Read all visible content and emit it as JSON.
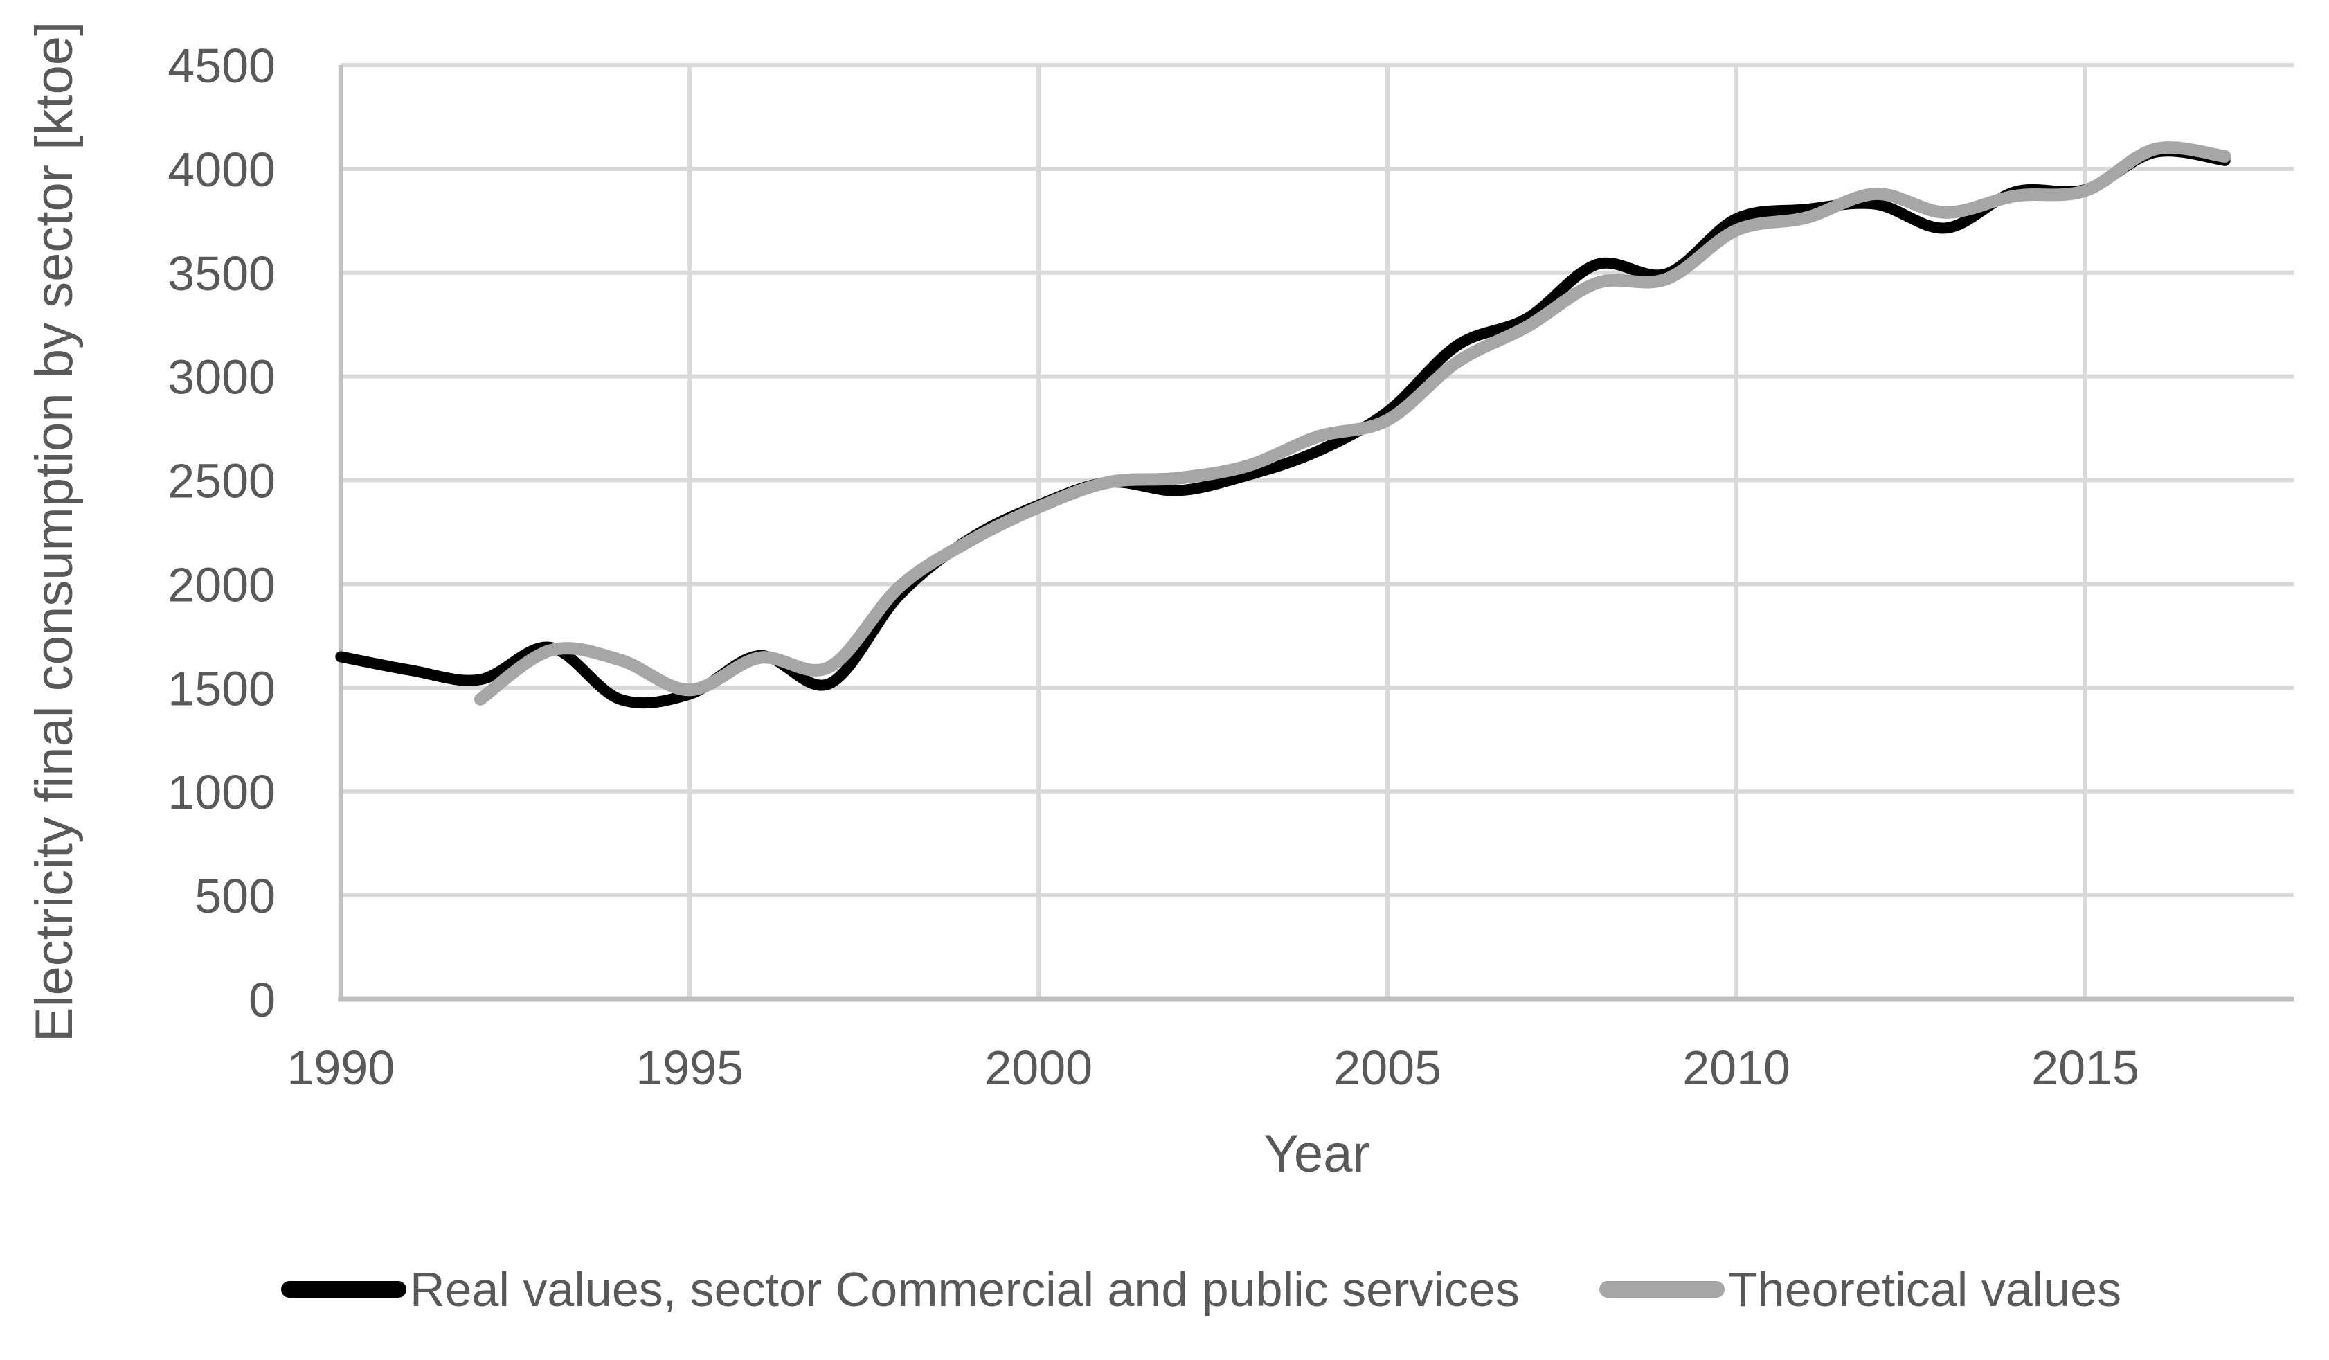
{
  "chart_data": {
    "type": "line",
    "title": "",
    "xlabel": "Year",
    "ylabel": "Electricity final consumption by sector [ktoe]",
    "grid": true,
    "legend_position": "bottom",
    "xlim": [
      1990,
      2017.9
    ],
    "ylim": [
      0,
      4500
    ],
    "x_tick_labels": [
      "1990",
      "1995",
      "2000",
      "2005",
      "2010",
      "2015"
    ],
    "x_tick_years": [
      1990,
      1995,
      2000,
      2005,
      2010,
      2015
    ],
    "y_tick_labels": [
      "0",
      "500",
      "1000",
      "1500",
      "2000",
      "2500",
      "3000",
      "3500",
      "4000",
      "4500"
    ],
    "y_tick_values": [
      0,
      500,
      1000,
      1500,
      2000,
      2500,
      3000,
      3500,
      4000,
      4500
    ],
    "x": [
      1990,
      1991,
      1992,
      1993,
      1994,
      1995,
      1996,
      1997,
      1998,
      1999,
      2000,
      2001,
      2002,
      2003,
      2004,
      2005,
      2006,
      2007,
      2008,
      2009,
      2010,
      2011,
      2012,
      2013,
      2014,
      2015,
      2016,
      2017
    ],
    "series": [
      {
        "name": "Real values, sector Commercial and public services",
        "color": "#000000",
        "values": [
          1650,
          1585,
          1540,
          1695,
          1445,
          1470,
          1655,
          1520,
          1945,
          2215,
          2380,
          2490,
          2450,
          2525,
          2640,
          2830,
          3150,
          3280,
          3540,
          3495,
          3760,
          3805,
          3830,
          3715,
          3890,
          3900,
          4080,
          4040
        ]
      },
      {
        "name": "Theoretical values",
        "color": "#a6a6a6",
        "values": [
          null,
          null,
          1445,
          1680,
          1635,
          1490,
          1645,
          1600,
          1985,
          2205,
          2370,
          2490,
          2510,
          2570,
          2710,
          2790,
          3070,
          3240,
          3450,
          3470,
          3705,
          3765,
          3880,
          3790,
          3870,
          3895,
          4095,
          4060
        ]
      }
    ]
  },
  "axes": {
    "x_title": "Year",
    "y_title": "Electricity final consumption by sector [ktoe]"
  },
  "legend": {
    "items": [
      {
        "label": "Real values, sector Commercial and public services",
        "color": "#000000"
      },
      {
        "label": "Theoretical values",
        "color": "#a6a6a6"
      }
    ]
  },
  "colors": {
    "series_real": "#000000",
    "series_theoretical": "#a6a6a6",
    "gridline": "#d9d9d9",
    "axis_line": "#bfbfbf",
    "text": "#595959",
    "background": "#ffffff"
  }
}
